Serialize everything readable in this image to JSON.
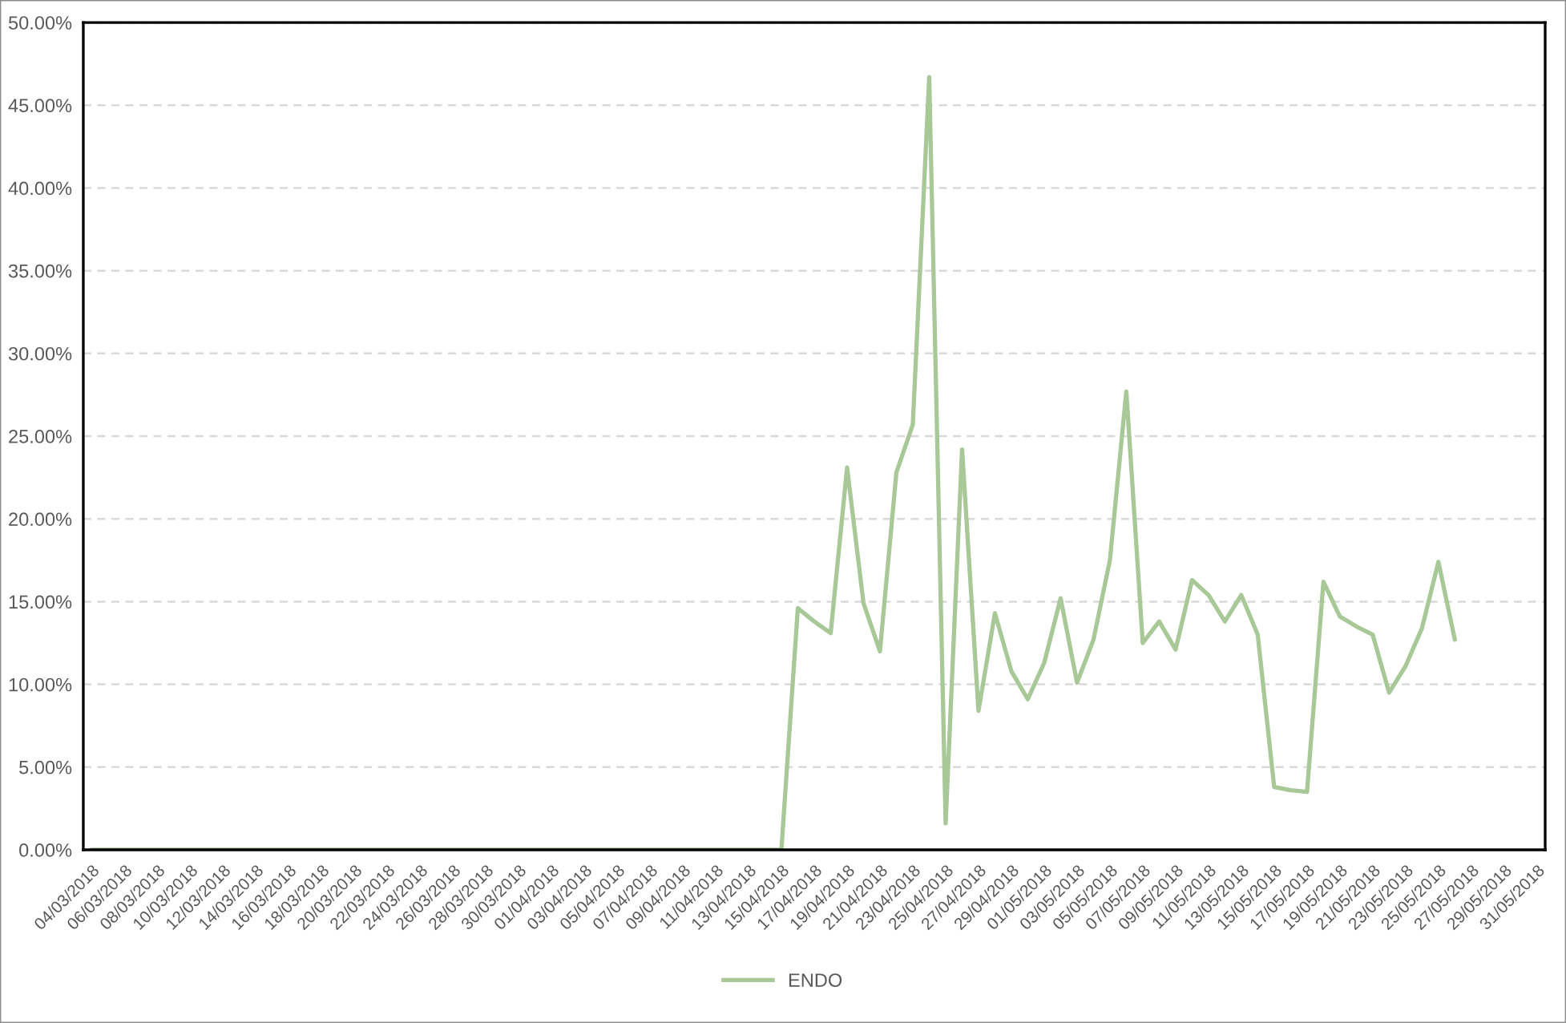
{
  "chart_data": {
    "type": "line",
    "categories": [
      "04/03/2018",
      null,
      "06/03/2018",
      null,
      "08/03/2018",
      null,
      "10/03/2018",
      null,
      "12/03/2018",
      null,
      "14/03/2018",
      null,
      "16/03/2018",
      null,
      "18/03/2018",
      null,
      "20/03/2018",
      null,
      "22/03/2018",
      null,
      "24/03/2018",
      null,
      "26/03/2018",
      null,
      "28/03/2018",
      null,
      "30/03/2018",
      null,
      "01/04/2018",
      null,
      "03/04/2018",
      null,
      "05/04/2018",
      null,
      "07/04/2018",
      null,
      "09/04/2018",
      null,
      "11/04/2018",
      null,
      "13/04/2018",
      null,
      "15/04/2018",
      null,
      "17/04/2018",
      null,
      "19/04/2018",
      null,
      "21/04/2018",
      null,
      "23/04/2018",
      null,
      "25/04/2018",
      null,
      "27/04/2018",
      null,
      "29/04/2018",
      null,
      "01/05/2018",
      null,
      "03/05/2018",
      null,
      "05/05/2018",
      null,
      "07/05/2018",
      null,
      "09/05/2018",
      null,
      "11/05/2018",
      null,
      "13/05/2018",
      null,
      "15/05/2018",
      null,
      "17/05/2018",
      null,
      "19/05/2018",
      null,
      "21/05/2018",
      null,
      "23/05/2018",
      null,
      "25/05/2018",
      null,
      "27/05/2018",
      null,
      "29/05/2018",
      null,
      "31/05/2018"
    ],
    "series": [
      {
        "name": "ENDO",
        "color": "#a8c898",
        "values": [
          0,
          0,
          0,
          0,
          0,
          0,
          0,
          0,
          0,
          0,
          0,
          0,
          0,
          0,
          0,
          0,
          0,
          0,
          0,
          0,
          0,
          0,
          0,
          0,
          0,
          0,
          0,
          0,
          0,
          0,
          0,
          0,
          0,
          0,
          0,
          0,
          0,
          0,
          0,
          0,
          0,
          0,
          0,
          14.6,
          13.8,
          13.1,
          23.1,
          14.9,
          12.0,
          22.8,
          25.7,
          46.7,
          1.6,
          24.2,
          8.4,
          14.3,
          10.8,
          9.1,
          11.3,
          15.2,
          10.1,
          12.7,
          17.5,
          27.7,
          12.5,
          13.8,
          12.1,
          16.3,
          15.4,
          13.8,
          15.4,
          13.0,
          3.8,
          3.6,
          3.5,
          16.2,
          14.1,
          13.5,
          13.0,
          9.5,
          11.1,
          13.4,
          17.4,
          12.7,
          null,
          null,
          null,
          null,
          null
        ]
      }
    ],
    "ylim": [
      0,
      50
    ],
    "yticks": [
      {
        "value": 0,
        "label": "0.00%"
      },
      {
        "value": 5,
        "label": "5.00%"
      },
      {
        "value": 10,
        "label": "10.00%"
      },
      {
        "value": 15,
        "label": "15.00%"
      },
      {
        "value": 20,
        "label": "20.00%"
      },
      {
        "value": 25,
        "label": "25.00%"
      },
      {
        "value": 30,
        "label": "30.00%"
      },
      {
        "value": 35,
        "label": "35.00%"
      },
      {
        "value": 40,
        "label": "40.00%"
      },
      {
        "value": 45,
        "label": "45.00%"
      },
      {
        "value": 50,
        "label": "50.00%"
      }
    ],
    "grid": "y",
    "legend": "bottom"
  }
}
